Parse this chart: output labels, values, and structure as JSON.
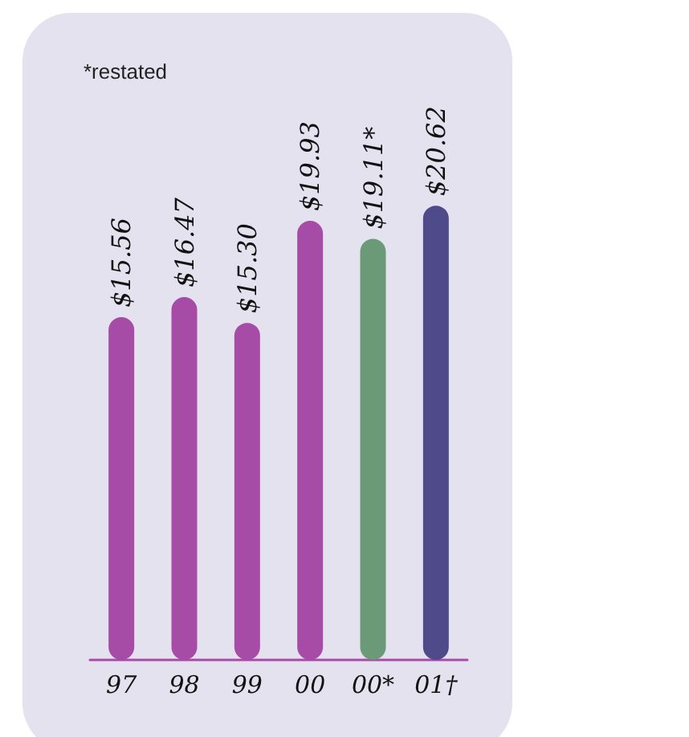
{
  "chart_data": {
    "type": "bar",
    "categories": [
      "97",
      "98",
      "99",
      "00",
      "00*",
      "01†"
    ],
    "values": [
      15.56,
      16.47,
      15.3,
      19.93,
      19.11,
      20.62
    ],
    "value_labels": [
      "$15.56",
      "$16.47",
      "$15.30",
      "$19.93",
      "$19.11*",
      "$20.62"
    ],
    "colors": [
      "#a64ca6",
      "#a64ca6",
      "#a64ca6",
      "#a64ca6",
      "#6a9a78",
      "#4f4a8a"
    ],
    "tick_labels": "x",
    "grid": false,
    "annotations": [
      "*restated"
    ]
  }
}
